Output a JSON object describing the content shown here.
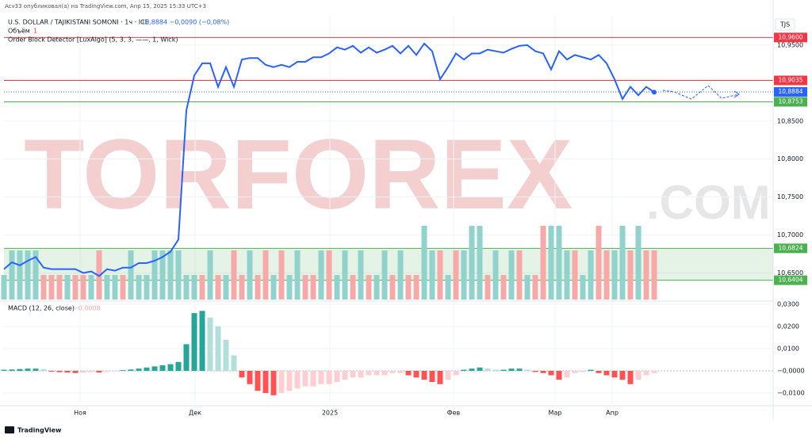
{
  "header": {
    "publisher": "Acv33 опубликовал(а) на TradingView.com, Апр 15, 2025 15:33 UTC+3",
    "symbol": "U.S. DOLLAR / TAJIKISTANI SOMONI · 1ч · ICE",
    "quote": "10,8884 −0,0090 (−0,08%)",
    "indicator": "Order Block Detector [LuxAlgo] (5, 3, 3, ——, 1, Wick)",
    "currency": "TJS",
    "footer": "TradingView",
    "watermark": "TORFOREX",
    "watermark_suffix": ".COM"
  },
  "chart_data": [
    {
      "type": "line",
      "xlim": [
        0,
        97
      ],
      "ylim": [
        10.615,
        10.9885
      ],
      "x": [
        0,
        1,
        2,
        3,
        4,
        5,
        6,
        7,
        8,
        9,
        10,
        11,
        12,
        13,
        14,
        15,
        16,
        17,
        18,
        19,
        20,
        21,
        22,
        23,
        24,
        25,
        26,
        27,
        28,
        29,
        30,
        31,
        32,
        33,
        34,
        35,
        36,
        37,
        38,
        39,
        40,
        41,
        42,
        43,
        44,
        45,
        46,
        47,
        48,
        49,
        50,
        51,
        52,
        53,
        54,
        55,
        56,
        57,
        58,
        59,
        60,
        61,
        62,
        63,
        64,
        65,
        66,
        67,
        68,
        69,
        70,
        71,
        72,
        73,
        74,
        75,
        76,
        77,
        78,
        79,
        80,
        81,
        82
      ],
      "xticks": [
        {
          "value": 9.6,
          "label": "Ноя"
        },
        {
          "value": 24.1,
          "label": "Дек"
        },
        {
          "value": 41.1,
          "label": "2025"
        },
        {
          "value": 56.7,
          "label": "Фев"
        },
        {
          "value": 69.5,
          "label": "Мар"
        },
        {
          "value": 76.7,
          "label": "Апр"
        }
      ],
      "yticks": [
        {
          "value": 10.95,
          "label": "10,9500"
        },
        {
          "value": 10.85,
          "label": "10,8500"
        },
        {
          "value": 10.8,
          "label": "10,8000"
        },
        {
          "value": 10.75,
          "label": "10,7500"
        },
        {
          "value": 10.7,
          "label": "10,7000"
        },
        {
          "value": 10.65,
          "label": "10,6500"
        }
      ],
      "series": [
        {
          "color": "#2962ff",
          "values": [
            10.655,
            10.664,
            10.66,
            10.666,
            10.671,
            10.657,
            10.655,
            10.655,
            10.655,
            10.655,
            10.65,
            10.652,
            10.646,
            10.655,
            10.653,
            10.657,
            10.657,
            10.663,
            10.663,
            10.666,
            10.671,
            10.678,
            10.694,
            10.864,
            10.91,
            10.926,
            10.926,
            10.895,
            10.921,
            10.895,
            10.931,
            10.933,
            10.933,
            10.924,
            10.921,
            10.924,
            10.921,
            10.928,
            10.928,
            10.934,
            10.934,
            10.939,
            10.947,
            10.944,
            10.949,
            10.94,
            10.947,
            10.94,
            10.944,
            10.949,
            10.939,
            10.949,
            10.937,
            10.952,
            10.942,
            10.905,
            10.921,
            10.939,
            10.931,
            10.939,
            10.939,
            10.944,
            10.942,
            10.94,
            10.945,
            10.949,
            10.95,
            10.942,
            10.939,
            10.918,
            10.942,
            10.931,
            10.937,
            10.934,
            10.931,
            10.937,
            10.926,
            10.905,
            10.879,
            10.895,
            10.884,
            10.895,
            10.888
          ]
        }
      ],
      "levels": [
        {
          "value": 10.96,
          "label": "10,9600",
          "color": "#f23645"
        },
        {
          "value": 10.9035,
          "label": "10,9035",
          "color": "#f23645"
        },
        {
          "value": 10.8884,
          "label": "10,8884",
          "color": "#2962ff",
          "dotted": true
        },
        {
          "value": 10.8753,
          "label": "10,8753",
          "color": "#4caf50"
        }
      ],
      "order_block": {
        "top": {
          "value": 10.6824,
          "label": "10,6824"
        },
        "bottom": {
          "value": 10.6404,
          "label": "10,6404"
        },
        "color": "#4caf50"
      },
      "volume": {
        "name": "Объём",
        "legend_value": 1,
        "up_color": "#92d2cc",
        "down_color": "#f7a9a7",
        "values": [
          1,
          2,
          2,
          2,
          2,
          1,
          1,
          1,
          1,
          1,
          1,
          1,
          2,
          1,
          1,
          1,
          2,
          1,
          1,
          2,
          2,
          2,
          2,
          1,
          1,
          1,
          2,
          1,
          1,
          2,
          1,
          2,
          1,
          2,
          1,
          2,
          1,
          2,
          1,
          1,
          2,
          2,
          1,
          2,
          1,
          2,
          1,
          1,
          2,
          1,
          2,
          1,
          1,
          3,
          2,
          2,
          1,
          2,
          2,
          3,
          3,
          1,
          2,
          1,
          2,
          2,
          1,
          1,
          3,
          3,
          3,
          2,
          2,
          1,
          2,
          3,
          2,
          2,
          3,
          2,
          3,
          2,
          2
        ],
        "up": [
          true,
          true,
          true,
          true,
          true,
          false,
          false,
          false,
          true,
          false,
          false,
          true,
          false,
          true,
          true,
          false,
          true,
          true,
          true,
          true,
          true,
          true,
          true,
          true,
          true,
          false,
          true,
          false,
          true,
          false,
          false,
          true,
          false,
          false,
          true,
          false,
          true,
          true,
          false,
          false,
          true,
          false,
          true,
          true,
          false,
          true,
          false,
          true,
          true,
          false,
          true,
          false,
          false,
          true,
          true,
          false,
          true,
          false,
          true,
          true,
          true,
          false,
          true,
          false,
          true,
          false,
          true,
          false,
          false,
          true,
          true,
          true,
          false,
          true,
          true,
          false,
          false,
          true,
          true,
          false,
          true,
          false,
          false
        ]
      }
    },
    {
      "type": "bar",
      "title": "MACD (12, 26, close)",
      "legend_value": "−0,0008",
      "xlim": [
        0,
        97
      ],
      "ylim": [
        -0.015,
        0.0314
      ],
      "x": [
        0,
        1,
        2,
        3,
        4,
        5,
        6,
        7,
        8,
        9,
        10,
        11,
        12,
        13,
        14,
        15,
        16,
        17,
        18,
        19,
        20,
        21,
        22,
        23,
        24,
        25,
        26,
        27,
        28,
        29,
        30,
        31,
        32,
        33,
        34,
        35,
        36,
        37,
        38,
        39,
        40,
        41,
        42,
        43,
        44,
        45,
        46,
        47,
        48,
        49,
        50,
        51,
        52,
        53,
        54,
        55,
        56,
        57,
        58,
        59,
        60,
        61,
        62,
        63,
        64,
        65,
        66,
        67,
        68,
        69,
        70,
        71,
        72,
        73,
        74,
        75,
        76,
        77,
        78,
        79,
        80,
        81,
        82
      ],
      "yticks": [
        {
          "value": 0.03,
          "label": "0,0300"
        },
        {
          "value": 0.02,
          "label": "0,0200"
        },
        {
          "value": 0.01,
          "label": "0,0100"
        },
        {
          "value": 0,
          "label": "−0,0000"
        },
        {
          "value": -0.01,
          "label": "−0,0100"
        }
      ],
      "colors": [
        "#26a69a",
        "#b2dfdb",
        "#ff5252",
        "#ffcdd2"
      ],
      "values": [
        0.0005,
        0.0006,
        0.0008,
        0.001,
        0.001,
        0.0008,
        -0.0004,
        -0.0006,
        -0.0008,
        -0.001,
        -0.0008,
        -0.0006,
        -0.0008,
        -0.0005,
        -0.0003,
        0.0003,
        0.0006,
        0.001,
        0.0015,
        0.002,
        0.0025,
        0.003,
        0.004,
        0.012,
        0.026,
        0.027,
        0.024,
        0.02,
        0.014,
        0.007,
        -0.003,
        -0.006,
        -0.009,
        -0.01,
        -0.011,
        -0.01,
        -0.009,
        -0.008,
        -0.007,
        -0.007,
        -0.006,
        -0.006,
        -0.005,
        -0.004,
        -0.003,
        -0.003,
        -0.002,
        -0.002,
        -0.002,
        -0.001,
        -0.001,
        -0.002,
        -0.003,
        -0.004,
        -0.005,
        -0.006,
        -0.004,
        -0.002,
        0.0005,
        0.001,
        0.0015,
        0.001,
        0.0005,
        0.0005,
        0.001,
        0.001,
        0.0005,
        -0.0005,
        -0.001,
        -0.002,
        -0.004,
        -0.003,
        -0.001,
        -0.0005,
        0.0005,
        -0.001,
        -0.002,
        -0.003,
        -0.004,
        -0.006,
        -0.004,
        -0.002,
        -0.001
      ]
    }
  ]
}
